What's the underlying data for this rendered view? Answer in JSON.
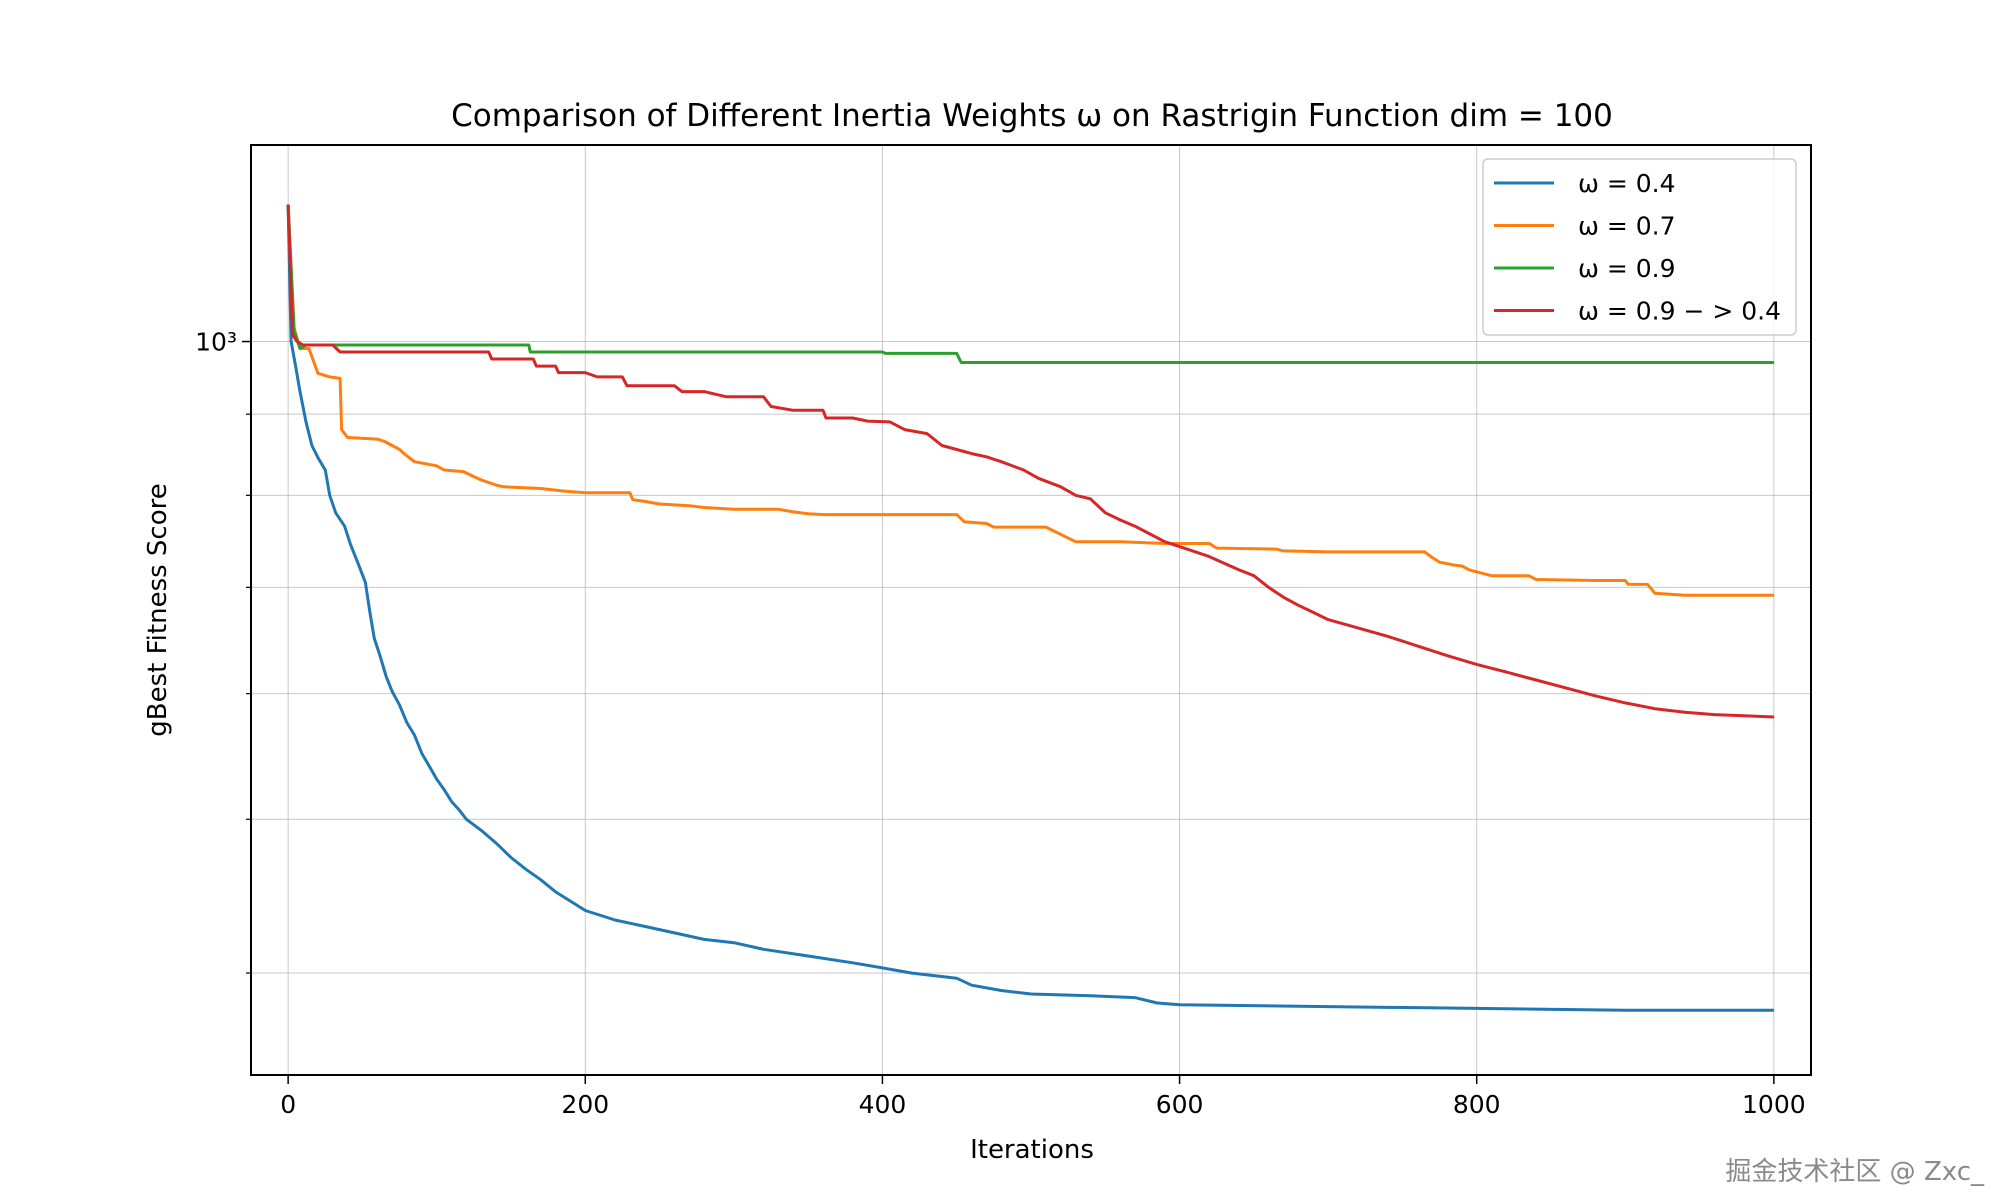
{
  "chart_data": {
    "type": "line",
    "title": "Comparison of Different Inertia Weights ω on Rastrigin Function dim = 100",
    "xlabel": "Iterations",
    "ylabel": "gBest Fitness Score",
    "xlim": [
      -25,
      1025
    ],
    "ylim": [
      345,
      1330
    ],
    "yscale": "log",
    "x_ticks": [
      0,
      200,
      400,
      600,
      800,
      1000
    ],
    "x_tick_labels": [
      "0",
      "200",
      "400",
      "600",
      "800",
      "1000"
    ],
    "y_major_tick_label": "10³",
    "y_major_tick_value": 1000,
    "y_minor_ticks": [
      400,
      500,
      600,
      700,
      800,
      900
    ],
    "grid": true,
    "legend_position": "top-right",
    "series": [
      {
        "name": "ω = 0.4",
        "color": "#1f77b4",
        "points": [
          [
            0,
            1220
          ],
          [
            2,
            1000
          ],
          [
            5,
            965
          ],
          [
            8,
            930
          ],
          [
            12,
            890
          ],
          [
            16,
            860
          ],
          [
            20,
            845
          ],
          [
            25,
            830
          ],
          [
            28,
            800
          ],
          [
            32,
            780
          ],
          [
            38,
            765
          ],
          [
            42,
            745
          ],
          [
            47,
            725
          ],
          [
            52,
            705
          ],
          [
            55,
            675
          ],
          [
            58,
            650
          ],
          [
            62,
            633
          ],
          [
            66,
            615
          ],
          [
            70,
            602
          ],
          [
            75,
            590
          ],
          [
            80,
            575
          ],
          [
            85,
            565
          ],
          [
            90,
            550
          ],
          [
            95,
            540
          ],
          [
            100,
            530
          ],
          [
            105,
            522
          ],
          [
            110,
            513
          ],
          [
            115,
            507
          ],
          [
            120,
            500
          ],
          [
            130,
            492
          ],
          [
            140,
            483
          ],
          [
            150,
            473
          ],
          [
            160,
            465
          ],
          [
            170,
            458
          ],
          [
            180,
            450
          ],
          [
            190,
            444
          ],
          [
            200,
            438
          ],
          [
            220,
            432
          ],
          [
            240,
            428
          ],
          [
            260,
            424
          ],
          [
            280,
            420
          ],
          [
            300,
            418
          ],
          [
            320,
            414
          ],
          [
            350,
            410
          ],
          [
            380,
            406
          ],
          [
            400,
            403
          ],
          [
            420,
            400
          ],
          [
            450,
            397
          ],
          [
            460,
            393
          ],
          [
            480,
            390
          ],
          [
            500,
            388
          ],
          [
            540,
            387
          ],
          [
            570,
            386
          ],
          [
            585,
            383
          ],
          [
            600,
            382
          ],
          [
            700,
            381
          ],
          [
            800,
            380
          ],
          [
            900,
            379
          ],
          [
            1000,
            379
          ]
        ]
      },
      {
        "name": "ω = 0.7",
        "color": "#ff7f0e",
        "points": [
          [
            0,
            1220
          ],
          [
            4,
            1020
          ],
          [
            8,
            990
          ],
          [
            14,
            990
          ],
          [
            20,
            955
          ],
          [
            28,
            950
          ],
          [
            35,
            948
          ],
          [
            36,
            880
          ],
          [
            40,
            870
          ],
          [
            60,
            868
          ],
          [
            65,
            865
          ],
          [
            75,
            855
          ],
          [
            78,
            850
          ],
          [
            85,
            840
          ],
          [
            100,
            835
          ],
          [
            105,
            830
          ],
          [
            118,
            828
          ],
          [
            125,
            822
          ],
          [
            130,
            818
          ],
          [
            140,
            812
          ],
          [
            145,
            810
          ],
          [
            170,
            808
          ],
          [
            185,
            805
          ],
          [
            200,
            803
          ],
          [
            230,
            803
          ],
          [
            232,
            795
          ],
          [
            240,
            793
          ],
          [
            250,
            790
          ],
          [
            270,
            788
          ],
          [
            280,
            786
          ],
          [
            300,
            784
          ],
          [
            330,
            784
          ],
          [
            340,
            781
          ],
          [
            350,
            779
          ],
          [
            360,
            778
          ],
          [
            400,
            778
          ],
          [
            450,
            778
          ],
          [
            455,
            770
          ],
          [
            470,
            768
          ],
          [
            475,
            764
          ],
          [
            510,
            764
          ],
          [
            530,
            748
          ],
          [
            560,
            748
          ],
          [
            590,
            746
          ],
          [
            620,
            746
          ],
          [
            625,
            741
          ],
          [
            665,
            740
          ],
          [
            670,
            738
          ],
          [
            700,
            737
          ],
          [
            765,
            737
          ],
          [
            770,
            731
          ],
          [
            775,
            726
          ],
          [
            785,
            723
          ],
          [
            790,
            722
          ],
          [
            795,
            718
          ],
          [
            810,
            712
          ],
          [
            835,
            712
          ],
          [
            840,
            708
          ],
          [
            880,
            707
          ],
          [
            900,
            707
          ],
          [
            902,
            703
          ],
          [
            915,
            703
          ],
          [
            920,
            694
          ],
          [
            940,
            692
          ],
          [
            960,
            692
          ],
          [
            1000,
            692
          ]
        ]
      },
      {
        "name": "ω = 0.9",
        "color": "#2ca02c",
        "points": [
          [
            0,
            1220
          ],
          [
            4,
            1015
          ],
          [
            8,
            990
          ],
          [
            12,
            995
          ],
          [
            30,
            995
          ],
          [
            162,
            995
          ],
          [
            163,
            985
          ],
          [
            400,
            985
          ],
          [
            402,
            983
          ],
          [
            450,
            983
          ],
          [
            453,
            970
          ],
          [
            600,
            970
          ],
          [
            800,
            970
          ],
          [
            1000,
            970
          ]
        ]
      },
      {
        "name": "ω = 0.9 − > 0.4",
        "color": "#d62728",
        "points": [
          [
            0,
            1220
          ],
          [
            3,
            1010
          ],
          [
            6,
            1000
          ],
          [
            10,
            995
          ],
          [
            30,
            995
          ],
          [
            35,
            985
          ],
          [
            80,
            985
          ],
          [
            135,
            985
          ],
          [
            137,
            975
          ],
          [
            165,
            975
          ],
          [
            167,
            965
          ],
          [
            180,
            965
          ],
          [
            182,
            956
          ],
          [
            200,
            956
          ],
          [
            208,
            950
          ],
          [
            225,
            950
          ],
          [
            228,
            938
          ],
          [
            260,
            938
          ],
          [
            265,
            930
          ],
          [
            280,
            930
          ],
          [
            295,
            923
          ],
          [
            320,
            923
          ],
          [
            325,
            910
          ],
          [
            340,
            905
          ],
          [
            360,
            905
          ],
          [
            362,
            895
          ],
          [
            380,
            895
          ],
          [
            390,
            891
          ],
          [
            405,
            890
          ],
          [
            415,
            880
          ],
          [
            430,
            875
          ],
          [
            440,
            860
          ],
          [
            450,
            855
          ],
          [
            460,
            850
          ],
          [
            470,
            846
          ],
          [
            480,
            840
          ],
          [
            495,
            830
          ],
          [
            505,
            820
          ],
          [
            520,
            810
          ],
          [
            530,
            800
          ],
          [
            540,
            796
          ],
          [
            550,
            780
          ],
          [
            560,
            772
          ],
          [
            570,
            765
          ],
          [
            590,
            748
          ],
          [
            605,
            740
          ],
          [
            620,
            732
          ],
          [
            630,
            725
          ],
          [
            640,
            718
          ],
          [
            650,
            712
          ],
          [
            660,
            700
          ],
          [
            670,
            690
          ],
          [
            680,
            682
          ],
          [
            690,
            675
          ],
          [
            700,
            668
          ],
          [
            720,
            660
          ],
          [
            740,
            652
          ],
          [
            760,
            643
          ],
          [
            780,
            634
          ],
          [
            800,
            626
          ],
          [
            820,
            619
          ],
          [
            840,
            612
          ],
          [
            860,
            605
          ],
          [
            880,
            598
          ],
          [
            900,
            592
          ],
          [
            920,
            587
          ],
          [
            940,
            584
          ],
          [
            960,
            582
          ],
          [
            980,
            581
          ],
          [
            1000,
            580
          ]
        ]
      }
    ]
  },
  "watermark": "掘金技术社区 @ Zxc_"
}
